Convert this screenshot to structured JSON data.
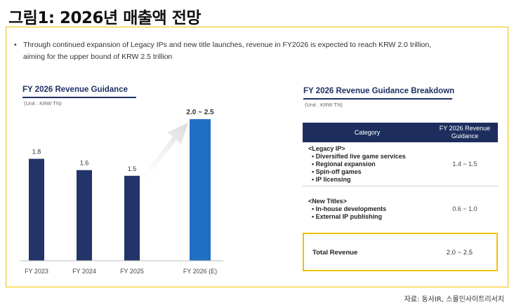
{
  "page_title": "그림1: 2026년 매출액 전망",
  "bullet": "Through continued expansion of Legacy IPs and new title launches, revenue in FY2026 is expected to reach KRW 2.0 trillion, aiming for the upper bound of KRW 2.5 trillion",
  "chart_data": [
    {
      "type": "bar",
      "title": "FY 2026 Revenue Guidance",
      "unit_label": "(Unit : KRW TN)",
      "categories": [
        "FY 2023",
        "FY 2024",
        "FY 2025",
        "FY 2026 (E)"
      ],
      "values": [
        1.8,
        1.6,
        1.5,
        2.5
      ],
      "data_labels": [
        "1.8",
        "1.6",
        "1.5",
        "2.0 ~ 2.5"
      ],
      "colors": [
        "#223468",
        "#223468",
        "#223468",
        "#1f6fc5"
      ],
      "arrow_color": "#e2e2e2",
      "ylim": [
        0,
        2.5
      ]
    },
    {
      "type": "table",
      "title": "FY 2026 Revenue Guidance Breakdown",
      "unit_label": "(Unit : KRW TN)",
      "columns": [
        "Category",
        "FY 2026 Revenue Guidance"
      ],
      "rows": [
        {
          "group": "<Legacy IP>",
          "items": [
            "Diversified live game services",
            "Regional expansion",
            "Spin-off games",
            "IP licensing"
          ],
          "value": "1.4 ~ 1.5"
        },
        {
          "group": "<New Titles>",
          "items": [
            "In-house developments",
            "External IP publishing"
          ],
          "value": "0.6 ~ 1.0"
        }
      ],
      "total": {
        "label": "Total Revenue",
        "value": "2.0 ~ 2.5"
      }
    }
  ],
  "source": "자료: 동사IR, 스몰인사이트리서치",
  "colors": {
    "accent_border": "#f2c200",
    "navy": "#1d2e5e"
  }
}
